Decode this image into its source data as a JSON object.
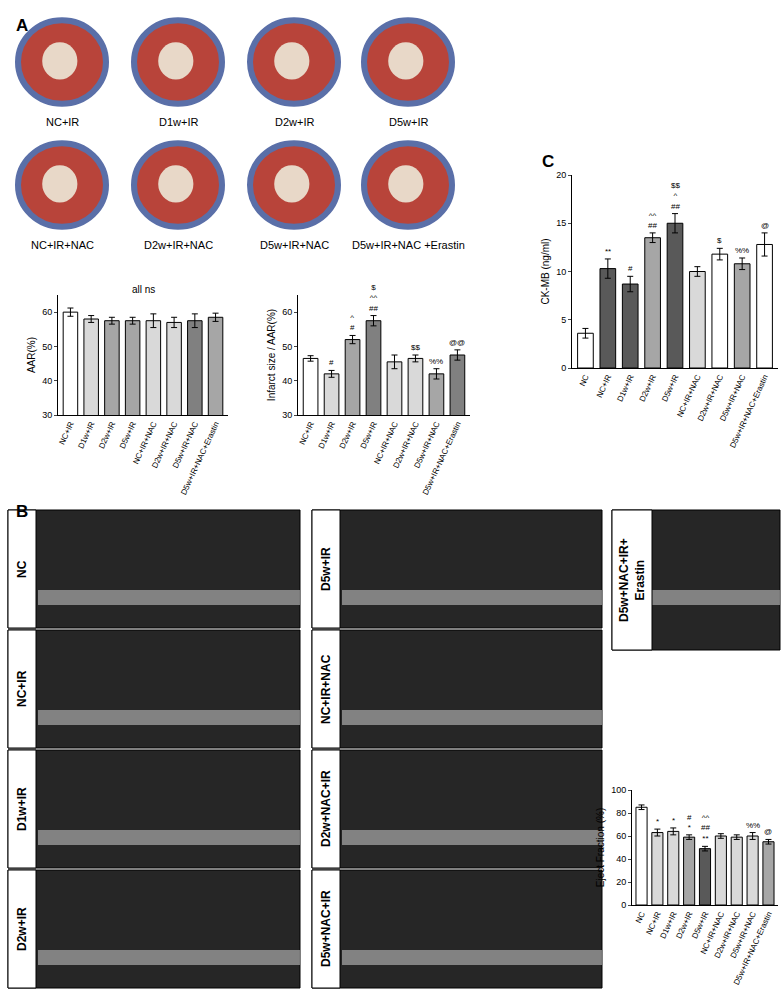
{
  "panel_labels": [
    "A",
    "B",
    "C"
  ],
  "heart_images": [
    "NC+IR",
    "D1w+IR",
    "D2w+IR",
    "D5w+IR",
    "NC+IR+NAC",
    "D2w+IR+NAC",
    "D5w+IR+NAC",
    "D5w+IR+NAC +Erastin"
  ],
  "echo_images": [
    [
      "NC"
    ],
    [
      "NC+IR"
    ],
    [
      "D1w+IR"
    ],
    [
      "D2w+IR"
    ],
    [
      "D5w+IR"
    ],
    [
      "NC+IR+NAC"
    ],
    [
      "D2w+NAC+IR"
    ],
    [
      "D5w+NAC+IR"
    ],
    [
      "D5w+NAC+IR+",
      "Erastin"
    ]
  ],
  "chart_data": [
    {
      "type": "bar",
      "y_label": "AAR(%)",
      "annotation": "all ns",
      "categories": [
        "NC+IR",
        "D1w+IR",
        "D2w+IR",
        "D5w+IR",
        "NC+IR+NAC",
        "D2w+IR+NAC",
        "D5w+IR+NAC",
        "D5w+IR+NAC+Erastin"
      ],
      "values": [
        60,
        58,
        57.5,
        57.5,
        57.5,
        57,
        57.5,
        58.5
      ],
      "errors": [
        1.2,
        1,
        1,
        1,
        2,
        1.5,
        2,
        1.2
      ],
      "sig_labels": [
        [],
        [],
        [],
        [],
        [],
        [],
        [],
        []
      ],
      "colors": [
        "#ffffff",
        "#d9d9d9",
        "#a6a6a6",
        "#a6a6a6",
        "#d9d9d9",
        "#d9d9d9",
        "#808080",
        "#a6a6a6"
      ],
      "ylim": [
        30,
        65
      ],
      "yticks": [
        30,
        40,
        50,
        60
      ]
    },
    {
      "type": "bar",
      "y_label": "Infarct size / AAR(%)",
      "categories": [
        "NC+IR",
        "D1w+IR",
        "D2w+IR",
        "D5w+IR",
        "NC+IR+NAC",
        "D2w+IR+NAC",
        "D5w+IR+NAC",
        "D5w+IR+NAC+Erastin"
      ],
      "values": [
        46.5,
        42,
        52,
        57.5,
        45.5,
        46.5,
        42,
        47.5
      ],
      "errors": [
        0.8,
        1,
        1.2,
        1.5,
        2,
        1,
        1.5,
        1.5
      ],
      "sig_labels": [
        [],
        [
          "#"
        ],
        [
          "^",
          "#"
        ],
        [
          "$",
          "^^",
          "##"
        ],
        [],
        [
          "$$"
        ],
        [
          "%%"
        ],
        [
          "@@"
        ]
      ],
      "colors": [
        "#ffffff",
        "#d9d9d9",
        "#a6a6a6",
        "#808080",
        "#d9d9d9",
        "#d9d9d9",
        "#a6a6a6",
        "#808080"
      ],
      "ylim": [
        30,
        65
      ],
      "yticks": [
        30,
        40,
        50,
        60
      ]
    },
    {
      "type": "bar",
      "y_label": "CK-MB (ng/ml)",
      "categories": [
        "NC",
        "NC+IR",
        "D1w+IR",
        "D2w+IR",
        "D5w+IR",
        "NC+IR+NAC",
        "D2w+IR+NAC",
        "D5w+IR+NAC",
        "D5w+IR+NAC+Erastin"
      ],
      "values": [
        3.6,
        10.3,
        8.7,
        13.5,
        15,
        10,
        11.8,
        10.8,
        12.8
      ],
      "errors": [
        0.5,
        1,
        0.8,
        0.5,
        1,
        0.5,
        0.6,
        0.6,
        1.2
      ],
      "sig_labels": [
        [],
        [
          "**"
        ],
        [
          "#"
        ],
        [
          "^^",
          "##"
        ],
        [
          "$$",
          "^",
          "##"
        ],
        [],
        [
          "$"
        ],
        [
          "%%"
        ],
        [
          "@"
        ]
      ],
      "colors": [
        "#ffffff",
        "#595959",
        "#595959",
        "#a6a6a6",
        "#595959",
        "#d9d9d9",
        "#ffffff",
        "#a6a6a6",
        "#ffffff"
      ],
      "ylim": [
        0,
        20
      ],
      "yticks": [
        0,
        5,
        10,
        15,
        20
      ]
    },
    {
      "type": "bar",
      "y_label": "Eject Fraction (%)",
      "categories": [
        "NC",
        "NC+IR",
        "D1w+IR",
        "D2w+IR",
        "D5w+IR",
        "NC+IR+NAC",
        "D2w+IR+NAC",
        "D5w+IR+NAC",
        "D5w+IR+NAC+Erastin"
      ],
      "values": [
        85,
        63,
        64,
        59,
        49,
        60,
        59,
        60,
        55
      ],
      "errors": [
        2,
        3,
        3,
        2,
        2,
        2,
        2,
        3,
        2
      ],
      "sig_labels": [
        [],
        [
          "*"
        ],
        [
          "*"
        ],
        [
          "#",
          "*"
        ],
        [
          "^^",
          "##",
          "**"
        ],
        [],
        [],
        [
          "%%"
        ],
        [
          "@"
        ]
      ],
      "colors": [
        "#ffffff",
        "#d9d9d9",
        "#d9d9d9",
        "#a6a6a6",
        "#595959",
        "#d9d9d9",
        "#d9d9d9",
        "#d9d9d9",
        "#a6a6a6"
      ],
      "ylim": [
        0,
        100
      ],
      "yticks": [
        0,
        20,
        40,
        60,
        80,
        100
      ]
    }
  ]
}
